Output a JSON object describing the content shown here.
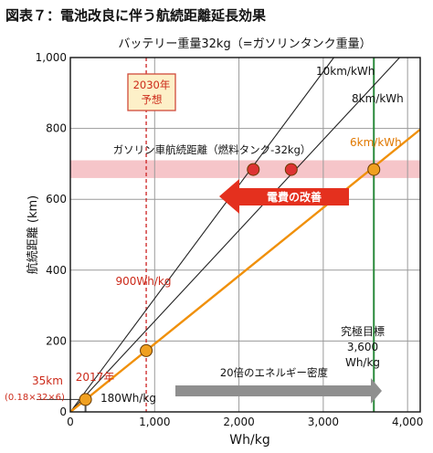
{
  "figure_title": "図表７：電池改良に伴う航続距離延長効果",
  "chart_data": {
    "type": "line",
    "subtitle": "バッテリー重量32kg（=ガソリンタンク重量）",
    "xlabel": "Wh/kg",
    "ylabel": "航続距離 (km)",
    "xlim": [
      0,
      4150
    ],
    "ylim": [
      0,
      1000
    ],
    "x_ticks": [
      "0",
      "1,000",
      "2,000",
      "3,000",
      "4,000"
    ],
    "x_tick_values": [
      0,
      1000,
      2000,
      3000,
      4000
    ],
    "y_ticks": [
      "0",
      "200",
      "400",
      "600",
      "800",
      "1,000"
    ],
    "y_tick_values": [
      0,
      200,
      400,
      600,
      800,
      1000
    ],
    "grid": true,
    "series": [
      {
        "name": "10km/kWh",
        "color": "#222222",
        "x": [
          0,
          3125
        ],
        "y": [
          0,
          1000
        ]
      },
      {
        "name": "8km/kWh",
        "color": "#222222",
        "x": [
          0,
          3906
        ],
        "y": [
          0,
          1000
        ]
      },
      {
        "name": "6km/kWh",
        "color": "#f0900a",
        "x": [
          0,
          4150
        ],
        "y": [
          0,
          797
        ]
      }
    ],
    "points": [
      {
        "x": 180,
        "y": 35,
        "color": "#f0a020",
        "label": "2017年"
      },
      {
        "x": 900,
        "y": 173,
        "color": "#f0a020",
        "label": "900Wh/kg"
      },
      {
        "x": 2170,
        "y": 684,
        "color": "#dd3333"
      },
      {
        "x": 2620,
        "y": 684,
        "color": "#dd3333"
      },
      {
        "x": 3600,
        "y": 684,
        "color": "#f0a020"
      }
    ],
    "gasoline_band": {
      "label": "ガソリン車航続距離（燃料タンク-32kg）",
      "y0": 660,
      "y1": 710,
      "color": "#f6c5c9"
    },
    "vlines": [
      {
        "x": 900,
        "color": "#cc2222",
        "style": "dashed"
      },
      {
        "x": 3600,
        "color": "#2a8a3a",
        "style": "solid"
      },
      {
        "x": 180,
        "color": "#555555",
        "style": "solid",
        "y_top": 35
      }
    ],
    "hline_35": {
      "y": 35,
      "color": "#444444"
    },
    "annotations": {
      "box_2030": [
        "2030年",
        "予想"
      ],
      "improvement_arrow": "電費の改善",
      "density_arrow": "20倍のエネルギー密度",
      "target_title": "究極目標",
      "target_value": "3,600",
      "target_unit": "Wh/kg",
      "label_900": "900Wh/kg",
      "label_180": "180Wh/kg",
      "label_2017": "2017年",
      "label_35": "35km",
      "label_35_calc": "(0.18×32×6)"
    }
  }
}
